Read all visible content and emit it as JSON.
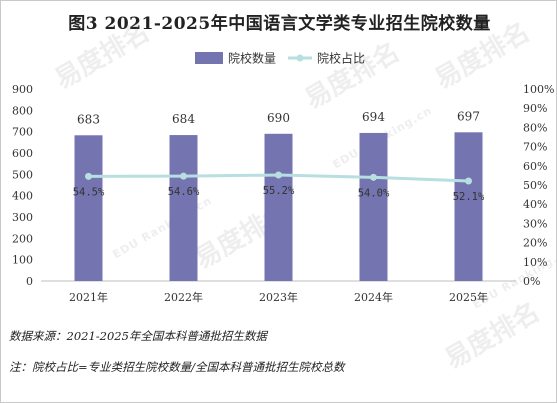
{
  "title": "图3  2021-2025年中国语言文学类专业招生院校数量",
  "watermark": {
    "brand": "易度排名",
    "sub": "EDU Ranking.cn"
  },
  "notes": {
    "source": "数据来源：2021-2025年全国本科普通批招生数据",
    "note": "注：院校占比=专业类招生院校数量/全国本科普通批招生院校总数"
  },
  "colors": {
    "bar": "#7474b0",
    "line": "#b7dfe0",
    "axis": "#bfbfbf"
  },
  "chart_data": {
    "type": "bar",
    "categories": [
      "2021年",
      "2022年",
      "2023年",
      "2024年",
      "2025年"
    ],
    "series": [
      {
        "name": "院校数量",
        "type": "bar",
        "axis": "left",
        "values": [
          683,
          684,
          690,
          694,
          697
        ],
        "labels": [
          "683",
          "684",
          "690",
          "694",
          "697"
        ]
      },
      {
        "name": "院校占比",
        "type": "line",
        "axis": "right",
        "values": [
          54.5,
          54.6,
          55.2,
          54.0,
          52.1
        ],
        "labels": [
          "54.5%",
          "54.6%",
          "55.2%",
          "54.0%",
          "52.1%"
        ]
      }
    ],
    "y_left": {
      "min": 0,
      "max": 900,
      "ticks": [
        "0",
        "100",
        "200",
        "300",
        "400",
        "500",
        "600",
        "700",
        "800",
        "900"
      ]
    },
    "y_right": {
      "min": 0,
      "max": 100,
      "ticks": [
        "0%",
        "10%",
        "20%",
        "30%",
        "40%",
        "50%",
        "60%",
        "70%",
        "80%",
        "90%",
        "100%"
      ]
    },
    "legend_position": "top-center",
    "grid": false
  }
}
